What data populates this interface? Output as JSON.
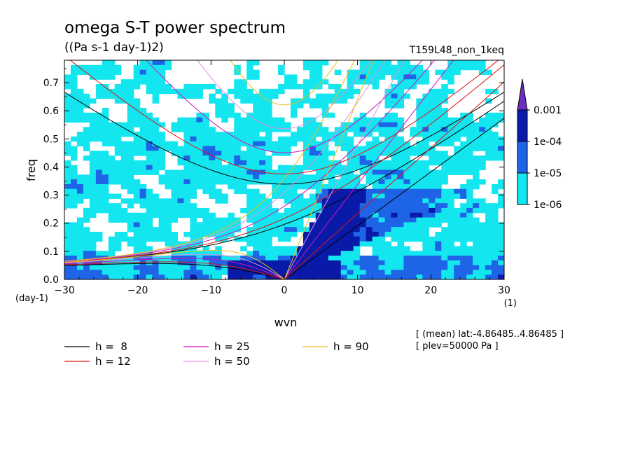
{
  "chart_data": {
    "type": "heatmap",
    "title": "omega S-T power spectrum",
    "subtitle": "((Pa s-1 day-1)2)",
    "run_label": "T159L48_non_1keq",
    "xlabel": "wvn",
    "ylabel": "freq",
    "x_unit": "(1)",
    "y_unit": "(day-1)",
    "xlim": [
      -30,
      30
    ],
    "ylim": [
      0,
      0.78
    ],
    "xticks": [
      -30,
      -20,
      -10,
      0,
      10,
      20,
      30
    ],
    "yticks": [
      0.0,
      0.1,
      0.2,
      0.3,
      0.4,
      0.5,
      0.6,
      0.7
    ],
    "colorbar": {
      "levels": [
        "0.001",
        "1e-04",
        "1e-05",
        "1e-06"
      ],
      "colors": [
        "#6a2fc0",
        "#0a1aa8",
        "#1e64e6",
        "#14e6f0"
      ]
    },
    "dispersion_curves": [
      {
        "label": "h =  8",
        "h": 8,
        "color": "#000000"
      },
      {
        "label": "h = 12",
        "h": 12,
        "color": "#e01010"
      },
      {
        "label": "h = 25",
        "h": 25,
        "color": "#d010c0"
      },
      {
        "label": "h = 50",
        "h": 50,
        "color": "#e090e0"
      },
      {
        "label": "h = 90",
        "h": 90,
        "color": "#e8c010"
      }
    ],
    "annotations": [
      "[ (mean) lat:-4.86485..4.86485 ]",
      "[ plev=50000 Pa ]"
    ]
  }
}
